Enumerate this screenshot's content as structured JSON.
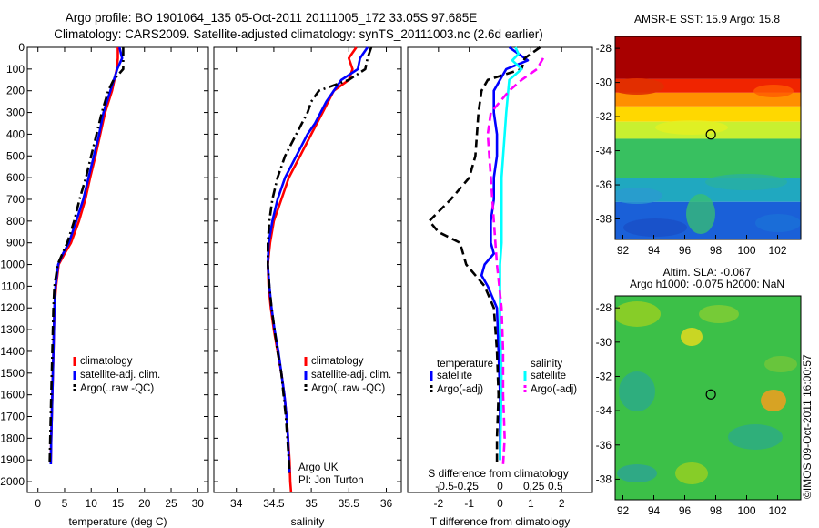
{
  "header": {
    "line1": "Argo profile: BO 1901064_135 05-Oct-2011 20111005_172 33.05S 97.685E",
    "line2": "Climatology: CARS2009. Satellite-adjusted climatology: synTS_20111003.nc (2.6d earlier)"
  },
  "side_stamp": "©IMOS 09-Oct-2011 16:00:57",
  "colors": {
    "climatology": "#ff0000",
    "satellite": "#0000ff",
    "argo": "#000000",
    "sat_salinity": "#00ffff",
    "argo_salinity": "#ff00ff"
  },
  "chart_data": [
    {
      "type": "line",
      "xlabel": "temperature (deg C)",
      "xlim": [
        -2,
        32
      ],
      "xticks": [
        0,
        5,
        10,
        15,
        20,
        25,
        30
      ],
      "ylim": [
        0,
        2050
      ],
      "yticks": [
        0,
        100,
        200,
        300,
        400,
        500,
        600,
        700,
        800,
        900,
        1000,
        1100,
        1200,
        1300,
        1400,
        1500,
        1600,
        1700,
        1800,
        1900,
        2000
      ],
      "yreversed": true,
      "legend": [
        "climatology",
        "satellite-adj. clim.",
        "Argo(..raw -QC)"
      ],
      "series": [
        {
          "name": "climatology",
          "style": "solid",
          "color": "#ff0000",
          "points": [
            [
              15.0,
              0
            ],
            [
              15.0,
              50
            ],
            [
              14.8,
              100
            ],
            [
              13.9,
              200
            ],
            [
              12.6,
              300
            ],
            [
              11.7,
              400
            ],
            [
              10.8,
              500
            ],
            [
              9.8,
              600
            ],
            [
              8.9,
              700
            ],
            [
              7.7,
              800
            ],
            [
              6.2,
              900
            ],
            [
              5.0,
              950
            ],
            [
              3.9,
              1000
            ],
            [
              3.4,
              1100
            ],
            [
              3.1,
              1200
            ],
            [
              2.9,
              1400
            ],
            [
              2.7,
              1600
            ],
            [
              2.5,
              1800
            ],
            [
              2.4,
              1920
            ]
          ]
        },
        {
          "name": "satellite-adj. clim.",
          "style": "solid",
          "color": "#0000ff",
          "points": [
            [
              15.3,
              0
            ],
            [
              15.8,
              50
            ],
            [
              14.9,
              100
            ],
            [
              13.6,
              200
            ],
            [
              12.3,
              300
            ],
            [
              11.5,
              400
            ],
            [
              10.5,
              500
            ],
            [
              9.5,
              600
            ],
            [
              8.5,
              700
            ],
            [
              7.2,
              800
            ],
            [
              5.8,
              900
            ],
            [
              4.7,
              950
            ],
            [
              3.8,
              1000
            ],
            [
              3.3,
              1100
            ],
            [
              3.1,
              1200
            ],
            [
              2.9,
              1400
            ],
            [
              2.7,
              1600
            ],
            [
              2.5,
              1800
            ],
            [
              2.4,
              1920
            ]
          ]
        },
        {
          "name": "Argo(..raw -QC)",
          "style": "dashdot",
          "color": "#000000",
          "points": [
            [
              16.0,
              0
            ],
            [
              16.0,
              100
            ],
            [
              14.2,
              150
            ],
            [
              13.2,
              200
            ],
            [
              12.0,
              300
            ],
            [
              11.0,
              400
            ],
            [
              10.0,
              500
            ],
            [
              9.0,
              600
            ],
            [
              7.8,
              700
            ],
            [
              6.8,
              800
            ],
            [
              5.5,
              900
            ],
            [
              4.6,
              950
            ],
            [
              3.7,
              1000
            ],
            [
              3.1,
              1100
            ],
            [
              2.9,
              1200
            ],
            [
              2.7,
              1400
            ],
            [
              2.5,
              1600
            ],
            [
              2.3,
              1800
            ],
            [
              2.2,
              1920
            ]
          ]
        }
      ],
      "annotations": []
    },
    {
      "type": "line",
      "xlabel": "salinity",
      "xlim": [
        33.7,
        36.2
      ],
      "xticks": [
        34,
        34.5,
        35,
        35.5,
        36
      ],
      "ylim": [
        0,
        2050
      ],
      "yticks": [
        0,
        100,
        200,
        300,
        400,
        500,
        600,
        700,
        800,
        900,
        1000,
        1100,
        1200,
        1300,
        1400,
        1500,
        1600,
        1700,
        1800,
        1900,
        2000
      ],
      "yreversed": true,
      "legend": [
        "climatology",
        "satellite-adj. clim.",
        "Argo(..raw -QC)"
      ],
      "series": [
        {
          "name": "climatology",
          "style": "solid",
          "color": "#ff0000",
          "points": [
            [
              35.6,
              0
            ],
            [
              35.5,
              50
            ],
            [
              35.55,
              100
            ],
            [
              35.5,
              150
            ],
            [
              35.3,
              200
            ],
            [
              35.15,
              300
            ],
            [
              35.0,
              400
            ],
            [
              34.85,
              500
            ],
            [
              34.7,
              600
            ],
            [
              34.6,
              700
            ],
            [
              34.5,
              800
            ],
            [
              34.45,
              900
            ],
            [
              34.42,
              1000
            ],
            [
              34.43,
              1100
            ],
            [
              34.46,
              1200
            ],
            [
              34.5,
              1300
            ],
            [
              34.55,
              1400
            ],
            [
              34.6,
              1500
            ],
            [
              34.64,
              1600
            ],
            [
              34.67,
              1700
            ],
            [
              34.69,
              1800
            ],
            [
              34.71,
              1900
            ],
            [
              34.72,
              2000
            ],
            [
              34.73,
              2050
            ]
          ]
        },
        {
          "name": "satellite-adj. clim.",
          "style": "solid",
          "color": "#0000ff",
          "points": [
            [
              35.75,
              0
            ],
            [
              35.65,
              50
            ],
            [
              35.62,
              100
            ],
            [
              35.4,
              150
            ],
            [
              35.2,
              250
            ],
            [
              35.05,
              350
            ],
            [
              34.95,
              400
            ],
            [
              34.8,
              500
            ],
            [
              34.65,
              600
            ],
            [
              34.55,
              700
            ],
            [
              34.48,
              800
            ],
            [
              34.43,
              900
            ],
            [
              34.42,
              1000
            ],
            [
              34.44,
              1100
            ],
            [
              34.47,
              1200
            ],
            [
              34.51,
              1300
            ],
            [
              34.56,
              1400
            ],
            [
              34.6,
              1500
            ],
            [
              34.64,
              1600
            ],
            [
              34.67,
              1700
            ],
            [
              34.69,
              1800
            ],
            [
              34.7,
              1900
            ],
            [
              34.71,
              1960
            ]
          ]
        },
        {
          "name": "Argo(..raw -QC)",
          "style": "dashdot",
          "color": "#000000",
          "points": [
            [
              35.8,
              0
            ],
            [
              35.75,
              50
            ],
            [
              35.72,
              100
            ],
            [
              35.5,
              150
            ],
            [
              35.1,
              200
            ],
            [
              35.0,
              250
            ],
            [
              34.95,
              300
            ],
            [
              34.8,
              400
            ],
            [
              34.65,
              500
            ],
            [
              34.55,
              600
            ],
            [
              34.48,
              700
            ],
            [
              34.44,
              800
            ],
            [
              34.42,
              900
            ],
            [
              34.42,
              1000
            ],
            [
              34.44,
              1100
            ],
            [
              34.47,
              1200
            ],
            [
              34.51,
              1300
            ],
            [
              34.55,
              1400
            ],
            [
              34.6,
              1500
            ],
            [
              34.63,
              1600
            ],
            [
              34.66,
              1700
            ],
            [
              34.68,
              1800
            ],
            [
              34.7,
              1900
            ],
            [
              34.71,
              1960
            ]
          ]
        }
      ],
      "annotations": [
        "Argo UK",
        "PI: Jon Turton"
      ]
    },
    {
      "type": "line",
      "xlabel": "T difference from climatology",
      "xlim": [
        -3,
        3
      ],
      "xticks": [
        -2,
        -1,
        0,
        1,
        2
      ],
      "xlabel2": "S difference from climatology",
      "xticks2": [
        "-0.5",
        "-0.25",
        "0",
        "0.25",
        "0.5"
      ],
      "ylim": [
        0,
        2050
      ],
      "yreversed": true,
      "legend_titles": [
        "temperature",
        "salinity"
      ],
      "legend": [
        "satellite",
        "Argo(-adj)",
        "satellite",
        "Argo(-adj)"
      ],
      "series": [
        {
          "name": "temperature satellite",
          "style": "solid",
          "color": "#0000ff",
          "points": [
            [
              0.3,
              0
            ],
            [
              0.6,
              30
            ],
            [
              0.9,
              60
            ],
            [
              0.2,
              100
            ],
            [
              -0.2,
              200
            ],
            [
              -0.2,
              300
            ],
            [
              -0.1,
              400
            ],
            [
              -0.1,
              500
            ],
            [
              -0.2,
              600
            ],
            [
              -0.2,
              700
            ],
            [
              -0.3,
              800
            ],
            [
              -0.3,
              900
            ],
            [
              -0.2,
              950
            ],
            [
              -0.5,
              1000
            ],
            [
              -0.6,
              1050
            ],
            [
              -0.4,
              1100
            ],
            [
              -0.1,
              1200
            ],
            [
              -0.05,
              1400
            ],
            [
              0,
              1600
            ],
            [
              0,
              1900
            ]
          ]
        },
        {
          "name": "temperature Argo(-adj)",
          "style": "dashed",
          "color": "#000000",
          "points": [
            [
              1.3,
              0
            ],
            [
              0.8,
              50
            ],
            [
              0.7,
              100
            ],
            [
              -0.4,
              150
            ],
            [
              -0.6,
              200
            ],
            [
              -0.7,
              300
            ],
            [
              -0.8,
              500
            ],
            [
              -1.0,
              600
            ],
            [
              -1.6,
              700
            ],
            [
              -2.3,
              800
            ],
            [
              -2.0,
              850
            ],
            [
              -1.3,
              900
            ],
            [
              -1.1,
              1000
            ],
            [
              -0.5,
              1100
            ],
            [
              -0.2,
              1200
            ],
            [
              -0.1,
              1400
            ],
            [
              -0.05,
              1600
            ],
            [
              -0.1,
              1800
            ],
            [
              -0.1,
              1920
            ]
          ]
        },
        {
          "name": "salinity satellite",
          "style": "solid",
          "color": "#00ffff",
          "points": [
            [
              0.5,
              0
            ],
            [
              0.6,
              30
            ],
            [
              0.4,
              60
            ],
            [
              0.7,
              100
            ],
            [
              0.3,
              150
            ],
            [
              0.2,
              300
            ],
            [
              0.05,
              600
            ],
            [
              0.05,
              900
            ],
            [
              0.0,
              1000
            ],
            [
              0.0,
              1300
            ],
            [
              0.05,
              1500
            ],
            [
              0.03,
              1700
            ],
            [
              0.0,
              1900
            ]
          ]
        },
        {
          "name": "salinity Argo(-adj)",
          "style": "dashed",
          "color": "#ff00ff",
          "points": [
            [
              1.4,
              50
            ],
            [
              1.2,
              100
            ],
            [
              0.7,
              150
            ],
            [
              0.3,
              200
            ],
            [
              -0.3,
              300
            ],
            [
              -0.4,
              400
            ],
            [
              -0.3,
              600
            ],
            [
              -0.2,
              800
            ],
            [
              -0.1,
              1000
            ],
            [
              0.05,
              1200
            ],
            [
              0.1,
              1400
            ],
            [
              0.1,
              1600
            ],
            [
              0.15,
              1800
            ],
            [
              0.1,
              1920
            ]
          ]
        }
      ],
      "annotations": []
    },
    {
      "type": "heatmap",
      "title": "AMSR-E SST: 15.9 Argo: 15.8",
      "xlim": [
        91.5,
        103.5
      ],
      "ylim": [
        -39.2,
        -27.3
      ],
      "xticks": [
        92,
        94,
        96,
        98,
        100,
        102
      ],
      "yticks": [
        -28,
        -30,
        -32,
        -34,
        -36,
        -38
      ],
      "marker": [
        97.685,
        -33.05
      ],
      "bands": [
        {
          "from": -27.3,
          "to": -29.8,
          "color": "#a80000"
        },
        {
          "from": -29.8,
          "to": -30.6,
          "color": "#f02400"
        },
        {
          "from": -30.6,
          "to": -31.4,
          "color": "#ff9000"
        },
        {
          "from": -31.4,
          "to": -32.3,
          "color": "#ffd800"
        },
        {
          "from": -32.3,
          "to": -33.3,
          "color": "#c8f030"
        },
        {
          "from": -33.3,
          "to": -35.6,
          "color": "#38c060"
        },
        {
          "from": -35.6,
          "to": -37.0,
          "color": "#20a8c0"
        },
        {
          "from": -37.0,
          "to": -39.2,
          "color": "#1a60d8"
        }
      ]
    },
    {
      "type": "heatmap",
      "title": "Altim. SLA: -0.067",
      "subtitle": "Argo h1000: -0.075 h2000: NaN",
      "xlim": [
        91.5,
        103.5
      ],
      "ylim": [
        -39.2,
        -27.3
      ],
      "xticks": [
        92,
        94,
        96,
        98,
        100,
        102
      ],
      "yticks": [
        -28,
        -30,
        -32,
        -34,
        -36,
        -38
      ],
      "marker": [
        97.685,
        -33.05
      ],
      "base_color": "#3cc048"
    }
  ]
}
